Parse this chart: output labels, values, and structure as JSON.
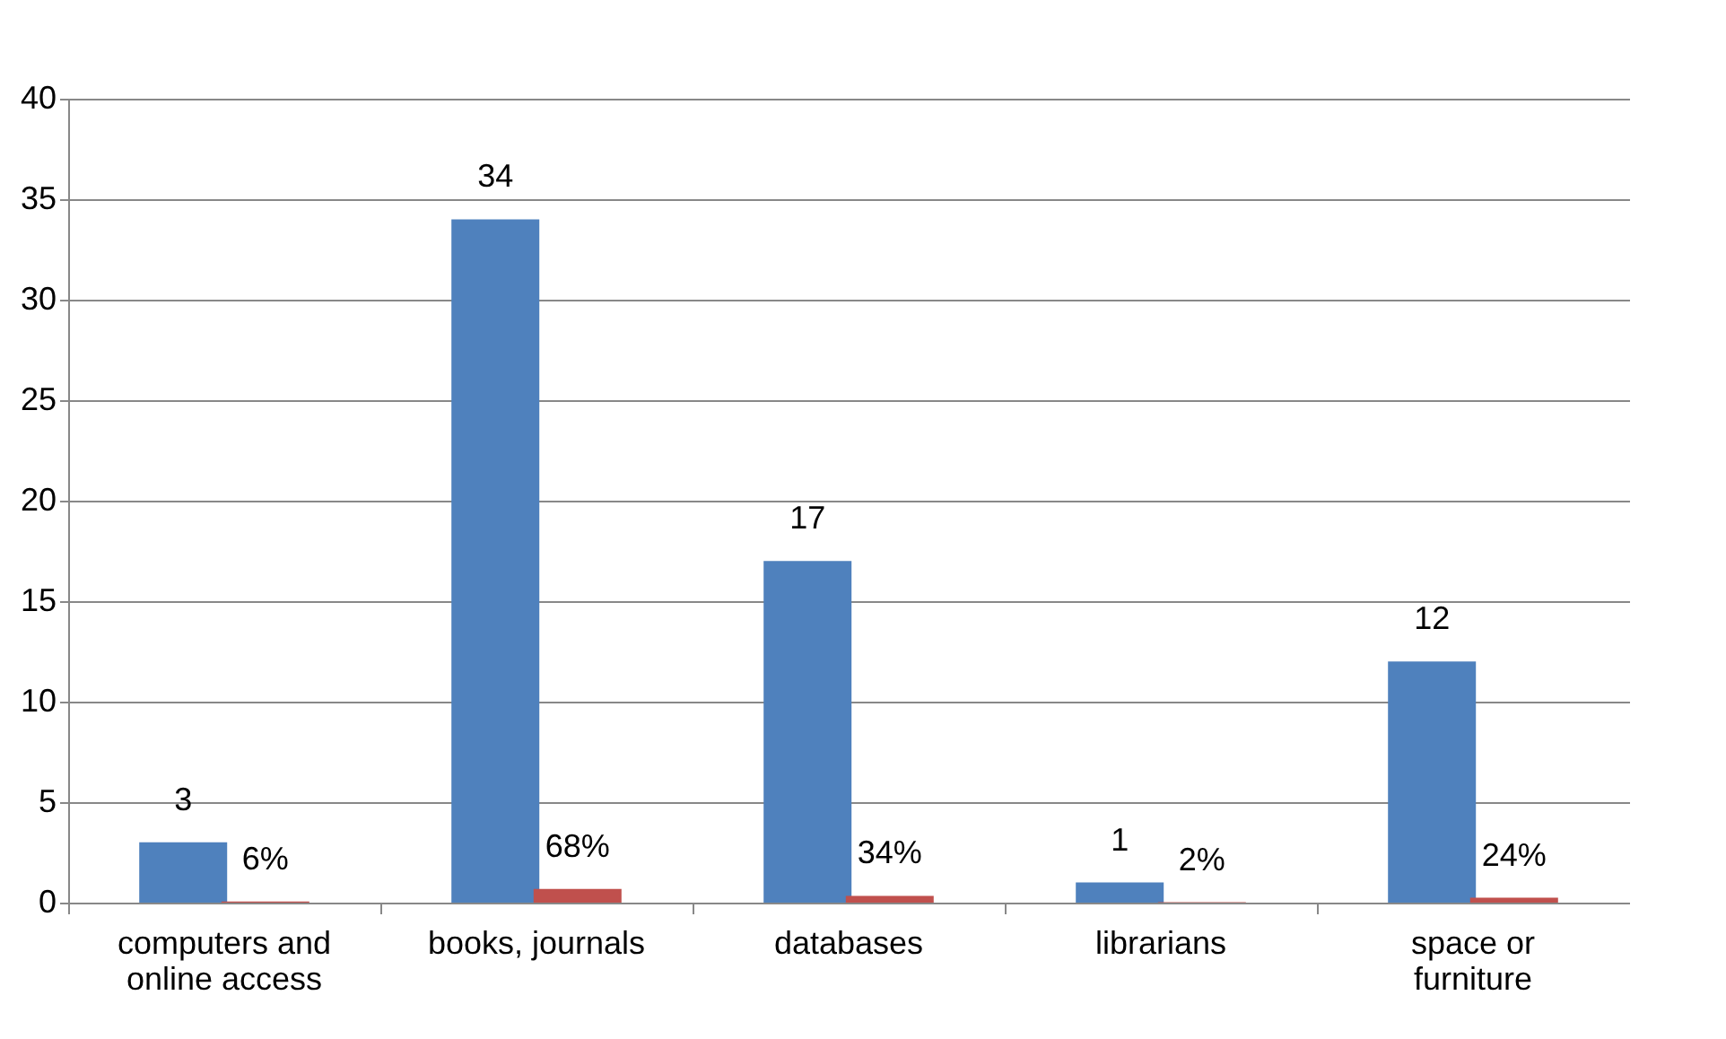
{
  "chart_data": {
    "type": "bar",
    "categories": [
      "computers and online access",
      "books, journals",
      "databases",
      "librarians",
      "space or furniture"
    ],
    "series": [
      {
        "color": "#4f81bd",
        "values": [
          3,
          34,
          17,
          1,
          12
        ],
        "value_labels": [
          "3",
          "34",
          "17",
          "1",
          "12"
        ]
      },
      {
        "color": "#c0504d",
        "values": [
          0.06,
          0.68,
          0.34,
          0.02,
          0.24
        ],
        "value_labels": [
          "6%",
          "68%",
          "34%",
          "2%",
          "24%"
        ]
      }
    ],
    "ylim": [
      0,
      40
    ],
    "yticks": [
      0,
      5,
      10,
      15,
      20,
      25,
      30,
      35,
      40
    ],
    "grid": "y",
    "legend": false
  }
}
